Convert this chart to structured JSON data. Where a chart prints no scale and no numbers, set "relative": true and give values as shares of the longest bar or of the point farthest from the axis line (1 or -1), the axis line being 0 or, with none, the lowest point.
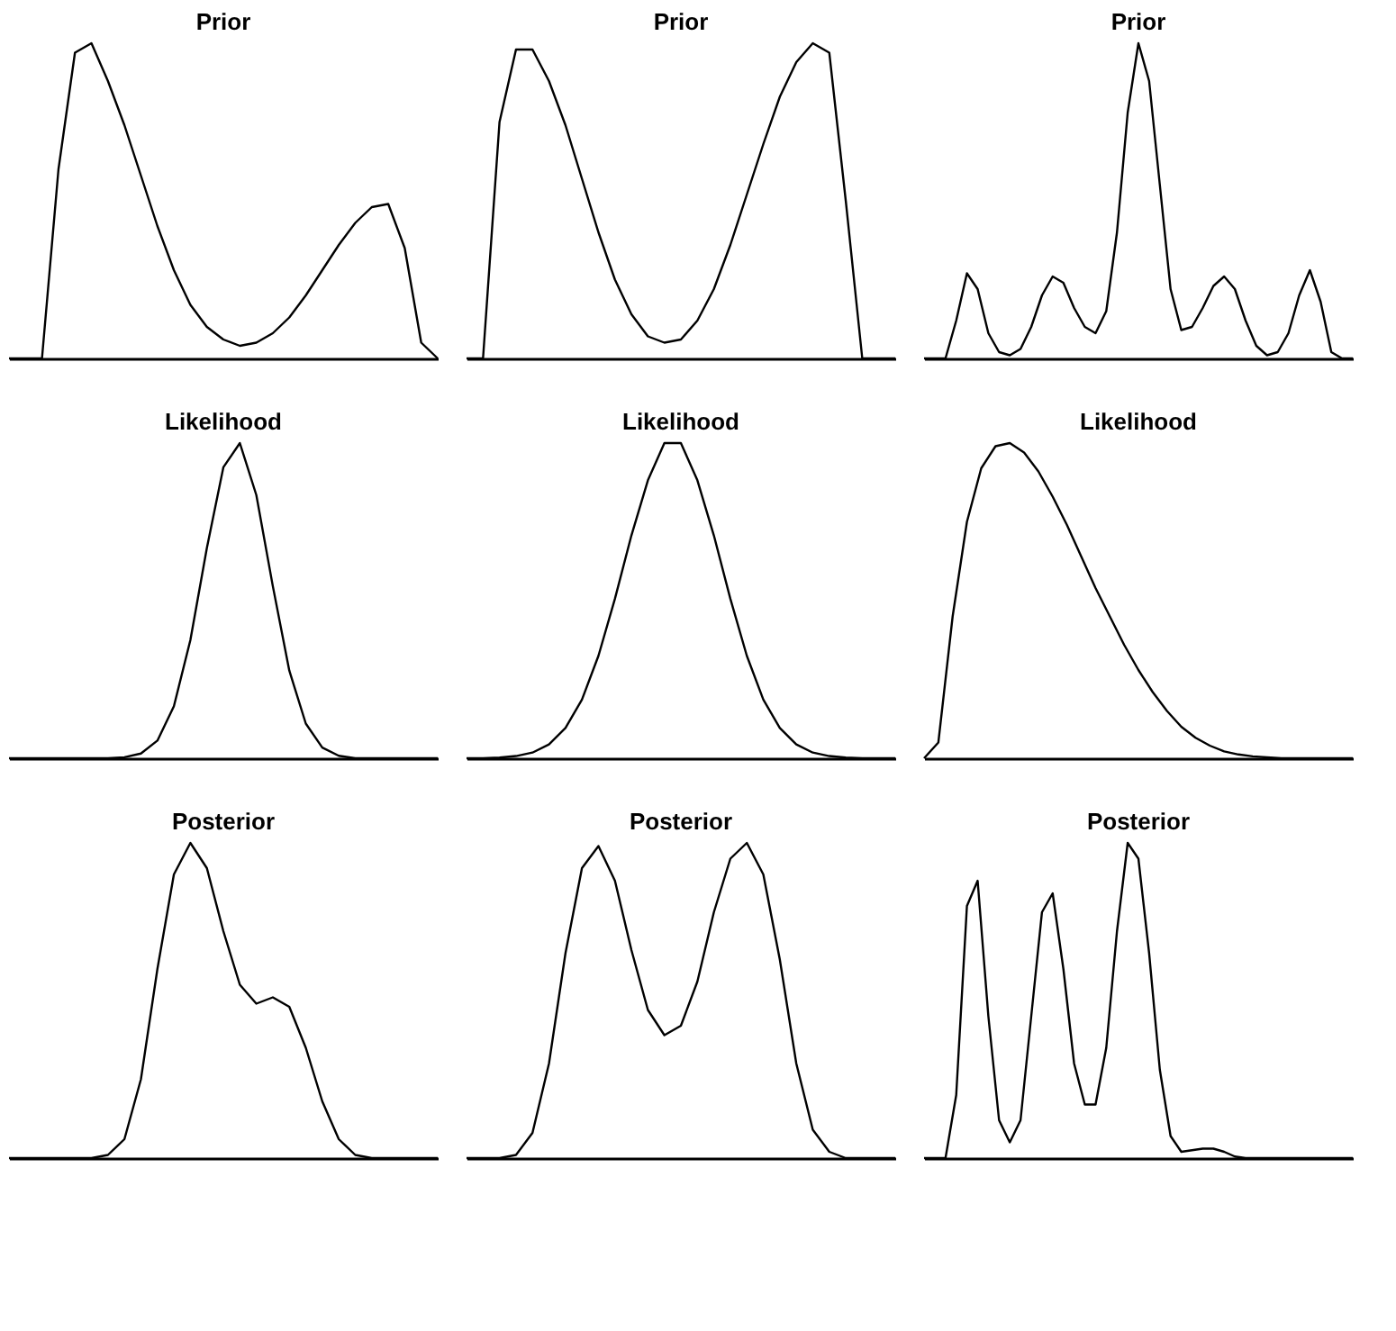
{
  "chart_data": [
    {
      "type": "line",
      "title": "Prior",
      "relative": true,
      "tick_labels": false,
      "categories": [
        null,
        null,
        null,
        null,
        null,
        null,
        null,
        null,
        null,
        null,
        null,
        null,
        null,
        null,
        null,
        null,
        null,
        null,
        null,
        null,
        null,
        null,
        null,
        null,
        null,
        null,
        null
      ],
      "series": [
        {
          "color": "#000000",
          "values": [
            0,
            0,
            0,
            0.6,
            0.97,
            1.0,
            0.88,
            0.74,
            0.58,
            0.42,
            0.28,
            0.17,
            0.1,
            0.06,
            0.04,
            0.05,
            0.08,
            0.13,
            0.2,
            0.28,
            0.36,
            0.43,
            0.48,
            0.49,
            0.35,
            0.05,
            0
          ]
        }
      ]
    },
    {
      "type": "line",
      "title": "Prior",
      "relative": true,
      "tick_labels": false,
      "categories": [
        null,
        null,
        null,
        null,
        null,
        null,
        null,
        null,
        null,
        null,
        null,
        null,
        null,
        null,
        null,
        null,
        null,
        null,
        null,
        null,
        null,
        null,
        null,
        null,
        null,
        null,
        null
      ],
      "series": [
        {
          "color": "#000000",
          "values": [
            0,
            0,
            0.75,
            0.98,
            0.98,
            0.88,
            0.74,
            0.57,
            0.4,
            0.25,
            0.14,
            0.07,
            0.05,
            0.06,
            0.12,
            0.22,
            0.36,
            0.52,
            0.68,
            0.83,
            0.94,
            1.0,
            0.97,
            0.5,
            0,
            0,
            0
          ]
        }
      ]
    },
    {
      "type": "line",
      "title": "Prior",
      "relative": true,
      "tick_labels": false,
      "categories": [
        null,
        null,
        null,
        null,
        null,
        null,
        null,
        null,
        null,
        null,
        null,
        null,
        null,
        null,
        null,
        null,
        null,
        null,
        null,
        null,
        null,
        null,
        null,
        null,
        null,
        null,
        null,
        null,
        null,
        null,
        null,
        null,
        null,
        null,
        null,
        null,
        null,
        null,
        null,
        null,
        null
      ],
      "series": [
        {
          "color": "#000000",
          "values": [
            0,
            0,
            0,
            0.12,
            0.27,
            0.22,
            0.08,
            0.02,
            0.01,
            0.03,
            0.1,
            0.2,
            0.26,
            0.24,
            0.16,
            0.1,
            0.08,
            0.15,
            0.4,
            0.78,
            1.0,
            0.88,
            0.55,
            0.22,
            0.09,
            0.1,
            0.16,
            0.23,
            0.26,
            0.22,
            0.12,
            0.04,
            0.01,
            0.02,
            0.08,
            0.2,
            0.28,
            0.18,
            0.02,
            0,
            0
          ]
        }
      ]
    },
    {
      "type": "line",
      "title": "Likelihood",
      "relative": true,
      "tick_labels": false,
      "categories": [
        null,
        null,
        null,
        null,
        null,
        null,
        null,
        null,
        null,
        null,
        null,
        null,
        null,
        null,
        null,
        null,
        null,
        null,
        null,
        null,
        null,
        null,
        null,
        null,
        null,
        null,
        null
      ],
      "series": [
        {
          "color": "#000000",
          "values": [
            0,
            0,
            0,
            0,
            0,
            0,
            0,
            0.003,
            0.015,
            0.056,
            0.165,
            0.375,
            0.667,
            0.923,
            1.0,
            0.835,
            0.546,
            0.278,
            0.11,
            0.034,
            0.008,
            0,
            0,
            0,
            0,
            0,
            0
          ]
        }
      ]
    },
    {
      "type": "line",
      "title": "Likelihood",
      "relative": true,
      "tick_labels": false,
      "categories": [
        null,
        null,
        null,
        null,
        null,
        null,
        null,
        null,
        null,
        null,
        null,
        null,
        null,
        null,
        null,
        null,
        null,
        null,
        null,
        null,
        null,
        null,
        null,
        null,
        null,
        null,
        null
      ],
      "series": [
        {
          "color": "#000000",
          "values": [
            0,
            0,
            0.002,
            0.007,
            0.018,
            0.044,
            0.096,
            0.186,
            0.325,
            0.506,
            0.707,
            0.882,
            1.0,
            1.0,
            0.882,
            0.707,
            0.506,
            0.325,
            0.186,
            0.096,
            0.044,
            0.018,
            0.007,
            0.002,
            0,
            0,
            0
          ]
        }
      ]
    },
    {
      "type": "line",
      "title": "Likelihood",
      "relative": true,
      "tick_labels": false,
      "categories": [
        null,
        null,
        null,
        null,
        null,
        null,
        null,
        null,
        null,
        null,
        null,
        null,
        null,
        null,
        null,
        null,
        null,
        null,
        null,
        null,
        null,
        null,
        null,
        null,
        null,
        null,
        null,
        null,
        null,
        null,
        null
      ],
      "series": [
        {
          "color": "#000000",
          "values": [
            0,
            0.05,
            0.45,
            0.75,
            0.92,
            0.99,
            1.0,
            0.97,
            0.91,
            0.83,
            0.74,
            0.64,
            0.54,
            0.45,
            0.36,
            0.28,
            0.21,
            0.15,
            0.1,
            0.065,
            0.04,
            0.022,
            0.012,
            0.006,
            0.003,
            0,
            0,
            0,
            0,
            0,
            0
          ]
        }
      ]
    },
    {
      "type": "line",
      "title": "Posterior",
      "relative": true,
      "tick_labels": false,
      "categories": [
        null,
        null,
        null,
        null,
        null,
        null,
        null,
        null,
        null,
        null,
        null,
        null,
        null,
        null,
        null,
        null,
        null,
        null,
        null,
        null,
        null,
        null,
        null,
        null,
        null,
        null,
        null
      ],
      "series": [
        {
          "color": "#000000",
          "values": [
            0,
            0,
            0,
            0,
            0,
            0,
            0.01,
            0.06,
            0.25,
            0.6,
            0.9,
            1.0,
            0.92,
            0.72,
            0.55,
            0.49,
            0.51,
            0.48,
            0.35,
            0.18,
            0.06,
            0.01,
            0,
            0,
            0,
            0,
            0
          ]
        }
      ]
    },
    {
      "type": "line",
      "title": "Posterior",
      "relative": true,
      "tick_labels": false,
      "categories": [
        null,
        null,
        null,
        null,
        null,
        null,
        null,
        null,
        null,
        null,
        null,
        null,
        null,
        null,
        null,
        null,
        null,
        null,
        null,
        null,
        null,
        null,
        null,
        null,
        null,
        null,
        null
      ],
      "series": [
        {
          "color": "#000000",
          "values": [
            0,
            0,
            0,
            0.01,
            0.08,
            0.3,
            0.65,
            0.92,
            0.99,
            0.88,
            0.66,
            0.47,
            0.39,
            0.42,
            0.56,
            0.78,
            0.95,
            1.0,
            0.9,
            0.63,
            0.3,
            0.09,
            0.02,
            0,
            0,
            0,
            0
          ]
        }
      ]
    },
    {
      "type": "line",
      "title": "Posterior",
      "relative": true,
      "tick_labels": false,
      "categories": [
        null,
        null,
        null,
        null,
        null,
        null,
        null,
        null,
        null,
        null,
        null,
        null,
        null,
        null,
        null,
        null,
        null,
        null,
        null,
        null,
        null,
        null,
        null,
        null,
        null,
        null,
        null,
        null,
        null,
        null,
        null,
        null,
        null,
        null,
        null,
        null,
        null,
        null,
        null,
        null,
        null
      ],
      "series": [
        {
          "color": "#000000",
          "values": [
            0,
            0,
            0,
            0.2,
            0.8,
            0.88,
            0.45,
            0.12,
            0.05,
            0.12,
            0.45,
            0.78,
            0.84,
            0.6,
            0.3,
            0.17,
            0.17,
            0.35,
            0.72,
            1.0,
            0.95,
            0.65,
            0.28,
            0.07,
            0.02,
            0.025,
            0.03,
            0.03,
            0.02,
            0.005,
            0,
            0,
            0,
            0,
            0,
            0,
            0,
            0,
            0,
            0,
            0
          ]
        }
      ]
    }
  ]
}
